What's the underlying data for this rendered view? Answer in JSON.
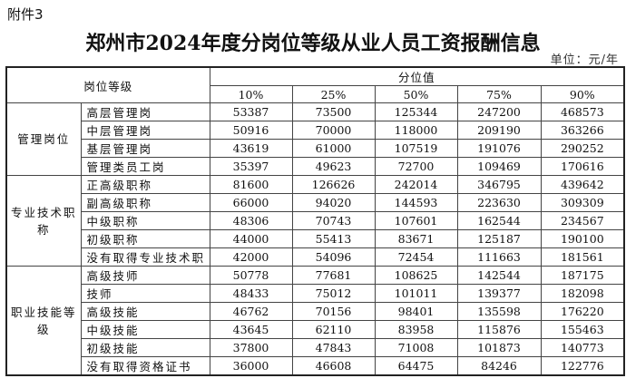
{
  "attachment_label": "附件3",
  "title": "郑州市2024年度分岗位等级从业人员工资报酬信息",
  "unit": "单位：元/年",
  "table": {
    "header_job": "岗位等级",
    "header_quantile": "分位值",
    "percentiles": [
      "10%",
      "25%",
      "50%",
      "75%",
      "90%"
    ],
    "groups": [
      {
        "category": "管理岗位",
        "rows": [
          {
            "job": "高层管理岗",
            "values": [
              "53387",
              "73500",
              "125344",
              "247200",
              "468573"
            ]
          },
          {
            "job": "中层管理岗",
            "values": [
              "50916",
              "70000",
              "118000",
              "209190",
              "363266"
            ]
          },
          {
            "job": "基层管理岗",
            "values": [
              "43619",
              "61000",
              "107519",
              "191076",
              "290252"
            ]
          },
          {
            "job": "管理类员工岗",
            "values": [
              "35397",
              "49623",
              "72700",
              "109469",
              "170616"
            ]
          }
        ]
      },
      {
        "category": "专业技术职称",
        "rows": [
          {
            "job": "正高级职称",
            "values": [
              "81600",
              "126626",
              "242014",
              "346795",
              "439642"
            ]
          },
          {
            "job": "副高级职称",
            "values": [
              "66000",
              "94020",
              "144593",
              "223630",
              "309309"
            ]
          },
          {
            "job": "中级职称",
            "values": [
              "48306",
              "70743",
              "107601",
              "162544",
              "234567"
            ]
          },
          {
            "job": "初级职称",
            "values": [
              "44000",
              "55413",
              "83671",
              "125187",
              "190100"
            ]
          },
          {
            "job": "没有取得专业技术职",
            "values": [
              "42000",
              "54096",
              "72454",
              "111663",
              "181561"
            ]
          }
        ]
      },
      {
        "category": "职业技能等级",
        "rows": [
          {
            "job": "高级技师",
            "values": [
              "50778",
              "77681",
              "108625",
              "142544",
              "187175"
            ]
          },
          {
            "job": "技师",
            "values": [
              "48433",
              "75012",
              "101011",
              "139377",
              "182098"
            ]
          },
          {
            "job": "高级技能",
            "values": [
              "46762",
              "70156",
              "98401",
              "135598",
              "176220"
            ]
          },
          {
            "job": "中级技能",
            "values": [
              "43645",
              "62110",
              "83958",
              "115876",
              "155463"
            ]
          },
          {
            "job": "初级技能",
            "values": [
              "37800",
              "47843",
              "71008",
              "101873",
              "140773"
            ]
          },
          {
            "job": "没有取得资格证书",
            "values": [
              "36000",
              "46608",
              "64475",
              "84246",
              "122776"
            ]
          }
        ]
      }
    ]
  }
}
